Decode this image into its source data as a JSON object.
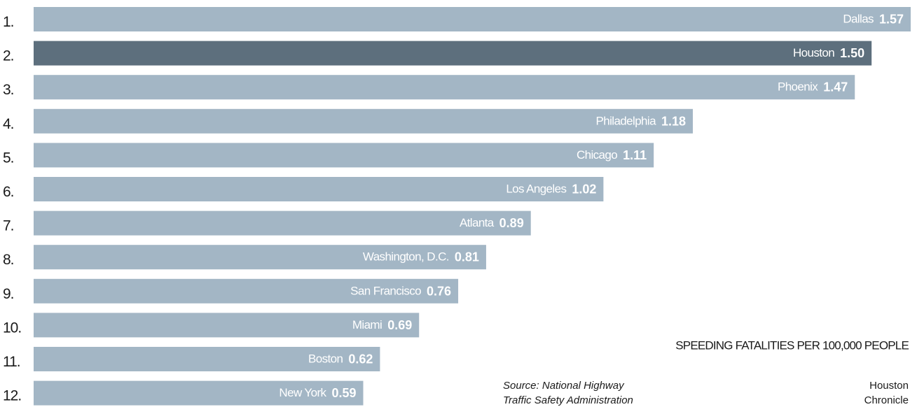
{
  "chart_data": {
    "type": "bar",
    "orientation": "horizontal",
    "title": "SPEEDING FATALITIES PER 100,000 PEOPLE",
    "ranks": [
      "1.",
      "2.",
      "3.",
      "4.",
      "5.",
      "6.",
      "7.",
      "8.",
      "9.",
      "10.",
      "11.",
      "12."
    ],
    "categories": [
      "Dallas",
      "Houston",
      "Phoenix",
      "Philadelphia",
      "Chicago",
      "Los Angeles",
      "Atlanta",
      "Washington, D.C.",
      "San Francisco",
      "Miami",
      "Boston",
      "New York"
    ],
    "values": [
      1.57,
      1.5,
      1.47,
      1.18,
      1.11,
      1.02,
      0.89,
      0.81,
      0.76,
      0.69,
      0.62,
      0.59
    ],
    "value_labels": [
      "1.57",
      "1.50",
      "1.47",
      "1.18",
      "1.11",
      "1.02",
      "0.89",
      "0.81",
      "0.76",
      "0.69",
      "0.62",
      "0.59"
    ],
    "colors": [
      "#a3b6c5",
      "#5d6f7d",
      "#a3b6c5",
      "#a3b6c5",
      "#a3b6c5",
      "#a3b6c5",
      "#a3b6c5",
      "#a3b6c5",
      "#a3b6c5",
      "#a3b6c5",
      "#a3b6c5",
      "#a3b6c5"
    ],
    "source": [
      "Source: National Highway",
      "Traffic Safety Administration"
    ],
    "credit": [
      "Houston",
      "Chronicle"
    ]
  }
}
